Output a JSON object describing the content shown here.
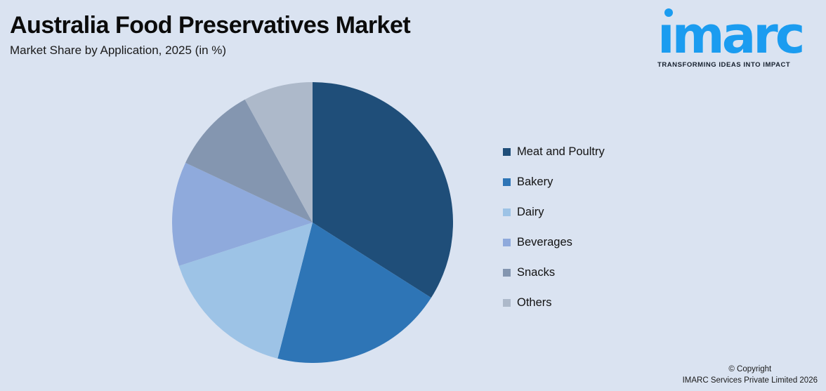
{
  "background_color": "#DAE3F1",
  "header": {
    "title": "Australia Food Preservatives Market",
    "subtitle": "Market Share by Application, 2025 (in %)"
  },
  "logo": {
    "wordmark": "imarc",
    "tagline": "TRANSFORMING IDEAS INTO IMPACT",
    "brand_color": "#1B9CF0"
  },
  "chart_data": {
    "type": "pie",
    "title": "Australia Food Preservatives Market",
    "subtitle": "Market Share by Application, 2025 (in %)",
    "unit": "%",
    "categories": [
      "Meat and Poultry",
      "Bakery",
      "Dairy",
      "Beverages",
      "Snacks",
      "Others"
    ],
    "values": [
      34,
      20,
      16,
      12,
      10,
      8
    ],
    "colors": [
      "#1F4E79",
      "#2E75B6",
      "#9DC3E6",
      "#8FAADC",
      "#8496B0",
      "#ADB9CA"
    ],
    "start_angle_deg": 0,
    "direction": "clockwise",
    "legend_position": "right",
    "data_labels": false
  },
  "footer": {
    "copyright_line1": "© Copyright",
    "copyright_line2": "IMARC Services Private Limited 2026"
  }
}
